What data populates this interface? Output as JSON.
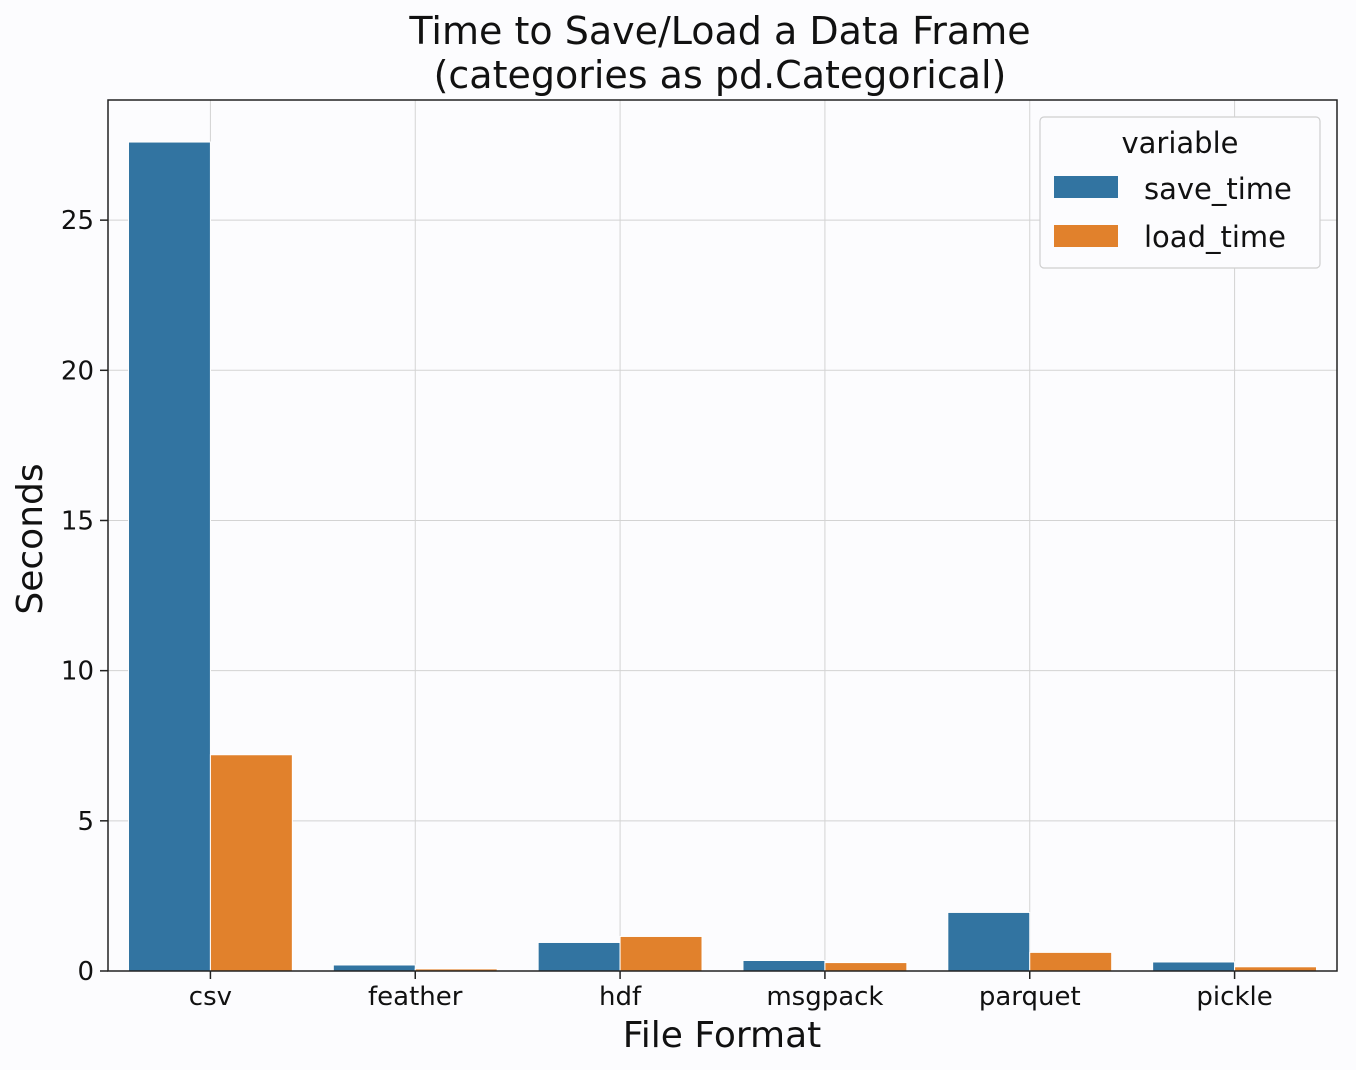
{
  "chart_data": {
    "type": "bar",
    "title": "Time to Save/Load a Data Frame",
    "subtitle": "(categories as pd.Categorical)",
    "xlabel": "File Format",
    "ylabel": "Seconds",
    "categories": [
      "csv",
      "feather",
      "hdf",
      "msgpack",
      "parquet",
      "pickle"
    ],
    "series": [
      {
        "name": "save_time",
        "color": "#3274a1",
        "values": [
          27.6,
          0.2,
          0.95,
          0.35,
          1.95,
          0.3
        ]
      },
      {
        "name": "load_time",
        "color": "#e1812c",
        "values": [
          7.2,
          0.07,
          1.15,
          0.28,
          0.62,
          0.14
        ]
      }
    ],
    "ylim": [
      0,
      29
    ],
    "yticks": [
      0,
      5,
      10,
      15,
      20,
      25
    ],
    "grid": true,
    "legend": {
      "title": "variable",
      "position": "top-right"
    }
  }
}
